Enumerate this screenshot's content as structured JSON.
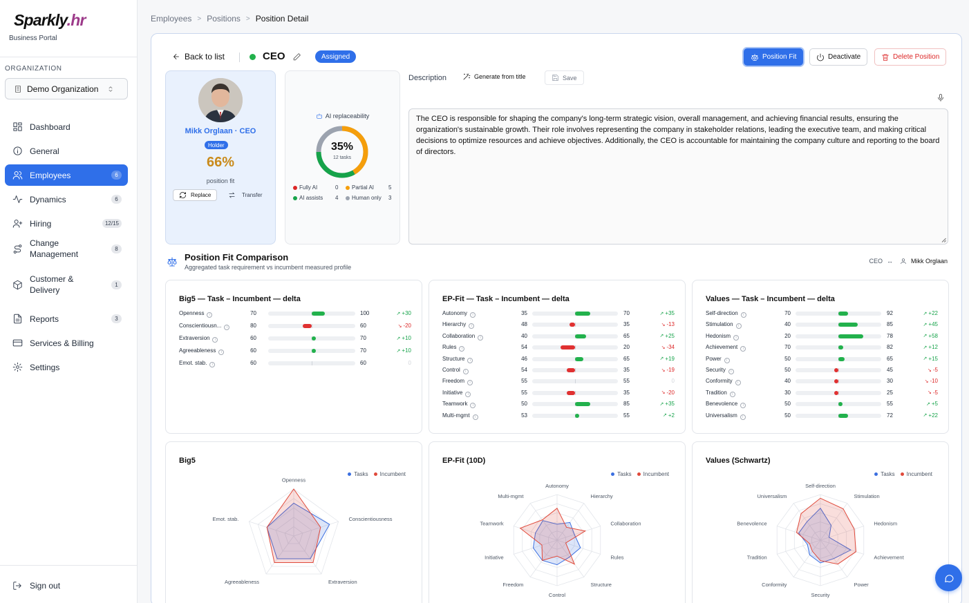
{
  "brand": {
    "name_a": "Sparkly",
    "name_b": ".hr",
    "subtitle": "Business Portal"
  },
  "sidebar": {
    "org_label": "ORGANIZATION",
    "org_value": "Demo Organization",
    "items": [
      {
        "label": "Dashboard",
        "badge": ""
      },
      {
        "label": "General",
        "badge": ""
      },
      {
        "label": "Employees",
        "badge": "6"
      },
      {
        "label": "Dynamics",
        "badge": "6"
      },
      {
        "label": "Hiring",
        "badge": "12/15"
      },
      {
        "label": "Change Management",
        "badge": "8"
      },
      {
        "label": "Customer & Delivery",
        "badge": "1"
      },
      {
        "label": "Reports",
        "badge": "3"
      },
      {
        "label": "Services & Billing",
        "badge": ""
      },
      {
        "label": "Settings",
        "badge": ""
      }
    ],
    "signout": "Sign out"
  },
  "breadcrumb": [
    "Employees",
    "Positions",
    "Position Detail"
  ],
  "header": {
    "back": "Back to list",
    "title": "CEO",
    "status": "Assigned",
    "btn_fit": "Position Fit",
    "btn_deactivate": "Deactivate",
    "btn_delete": "Delete Position"
  },
  "holder": {
    "name": "Mikk Orglaan · CEO",
    "badge": "Holder",
    "fit_pct": "66%",
    "fit_label": "position fit",
    "replace": "Replace",
    "transfer": "Transfer"
  },
  "ai": {
    "label": "AI replaceability",
    "pct": "35%",
    "tasks": "12 tasks",
    "legend": [
      {
        "label": "Fully AI",
        "value": "0",
        "color": "#dc2626"
      },
      {
        "label": "Partial AI",
        "value": "5",
        "color": "#f59e0b"
      },
      {
        "label": "AI assists",
        "value": "4",
        "color": "#16a34a"
      },
      {
        "label": "Human only",
        "value": "3",
        "color": "#9ca3af"
      }
    ]
  },
  "description": {
    "label": "Description",
    "generate": "Generate from title",
    "save": "Save",
    "text": "The CEO is responsible for shaping the company's long-term strategic vision, overall management, and achieving financial results, ensuring the organization's sustainable growth. Their role involves representing the company in stakeholder relations, leading the executive team, and making critical decisions to optimize resources and achieve objectives. Additionally, the CEO is accountable for maintaining the company culture and reporting to the board of directors."
  },
  "comparison": {
    "title": "Position Fit Comparison",
    "subtitle": "Aggregated task requirement vs incumbent measured profile",
    "role": "CEO",
    "arrow": "↔",
    "person": "Mikk Orglaan"
  },
  "delta_cards": [
    {
      "title": "Big5 — Task – Incumbent — delta",
      "rows": [
        {
          "name": "Openness",
          "task": 70,
          "inc": 100,
          "delta": "+30"
        },
        {
          "name": "Conscientiousn...",
          "task": 80,
          "inc": 60,
          "delta": "-20"
        },
        {
          "name": "Extraversion",
          "task": 60,
          "inc": 70,
          "delta": "+10"
        },
        {
          "name": "Agreeableness",
          "task": 60,
          "inc": 70,
          "delta": "+10"
        },
        {
          "name": "Emot. stab.",
          "task": 60,
          "inc": 60,
          "delta": "0"
        }
      ]
    },
    {
      "title": "EP-Fit — Task – Incumbent — delta",
      "rows": [
        {
          "name": "Autonomy",
          "task": 35,
          "inc": 70,
          "delta": "+35"
        },
        {
          "name": "Hierarchy",
          "task": 48,
          "inc": 35,
          "delta": "-13"
        },
        {
          "name": "Collaboration",
          "task": 40,
          "inc": 65,
          "delta": "+25"
        },
        {
          "name": "Rules",
          "task": 54,
          "inc": 20,
          "delta": "-34"
        },
        {
          "name": "Structure",
          "task": 46,
          "inc": 65,
          "delta": "+19"
        },
        {
          "name": "Control",
          "task": 54,
          "inc": 35,
          "delta": "-19"
        },
        {
          "name": "Freedom",
          "task": 55,
          "inc": 55,
          "delta": "0"
        },
        {
          "name": "Initiative",
          "task": 55,
          "inc": 35,
          "delta": "-20"
        },
        {
          "name": "Teamwork",
          "task": 50,
          "inc": 85,
          "delta": "+35"
        },
        {
          "name": "Multi-mgmt",
          "task": 53,
          "inc": 55,
          "delta": "+2"
        }
      ]
    },
    {
      "title": "Values — Task – Incumbent — delta",
      "rows": [
        {
          "name": "Self-direction",
          "task": 70,
          "inc": 92,
          "delta": "+22"
        },
        {
          "name": "Stimulation",
          "task": 40,
          "inc": 85,
          "delta": "+45"
        },
        {
          "name": "Hedonism",
          "task": 20,
          "inc": 78,
          "delta": "+58"
        },
        {
          "name": "Achievement",
          "task": 70,
          "inc": 82,
          "delta": "+12"
        },
        {
          "name": "Power",
          "task": 50,
          "inc": 65,
          "delta": "+15"
        },
        {
          "name": "Security",
          "task": 50,
          "inc": 45,
          "delta": "-5"
        },
        {
          "name": "Conformity",
          "task": 40,
          "inc": 30,
          "delta": "-10"
        },
        {
          "name": "Tradition",
          "task": 30,
          "inc": 25,
          "delta": "-5"
        },
        {
          "name": "Benevolence",
          "task": 50,
          "inc": 55,
          "delta": "+5"
        },
        {
          "name": "Universalism",
          "task": 50,
          "inc": 72,
          "delta": "+22"
        }
      ]
    }
  ],
  "chart_data": [
    {
      "type": "radar",
      "title": "Big5",
      "legend": [
        "Tasks",
        "Incumbent"
      ],
      "axes": [
        "Openness",
        "Conscientiousness",
        "Extraversion",
        "Agreeableness",
        "Emot. stab."
      ],
      "series": [
        {
          "name": "Tasks",
          "color": "#3b6fe0",
          "values": [
            70,
            80,
            60,
            60,
            60
          ]
        },
        {
          "name": "Incumbent",
          "color": "#e04a3b",
          "values": [
            100,
            60,
            70,
            70,
            60
          ]
        }
      ],
      "range": [
        0,
        100
      ]
    },
    {
      "type": "radar",
      "title": "EP-Fit (10D)",
      "legend": [
        "Tasks",
        "Incumbent"
      ],
      "axes": [
        "Autonomy",
        "Hierarchy",
        "Collaboration",
        "Rules",
        "Structure",
        "Control",
        "Freedom",
        "Initiative",
        "Teamwork",
        "Multi-mgmt"
      ],
      "series": [
        {
          "name": "Tasks",
          "color": "#3b6fe0",
          "values": [
            35,
            48,
            40,
            54,
            46,
            54,
            55,
            55,
            50,
            53
          ]
        },
        {
          "name": "Incumbent",
          "color": "#e04a3b",
          "values": [
            70,
            35,
            65,
            20,
            65,
            35,
            55,
            35,
            85,
            55
          ]
        }
      ],
      "range": [
        0,
        100
      ]
    },
    {
      "type": "radar",
      "title": "Values (Schwartz)",
      "legend": [
        "Tasks",
        "Incumbent"
      ],
      "axes": [
        "Self-direction",
        "Stimulation",
        "Hedonism",
        "Achievement",
        "Power",
        "Security",
        "Conformity",
        "Tradition",
        "Benevolence",
        "Universalism"
      ],
      "series": [
        {
          "name": "Tasks",
          "color": "#3b6fe0",
          "values": [
            70,
            40,
            20,
            70,
            50,
            50,
            40,
            30,
            50,
            50
          ]
        },
        {
          "name": "Incumbent",
          "color": "#e04a3b",
          "values": [
            92,
            85,
            78,
            82,
            65,
            45,
            30,
            25,
            55,
            72
          ]
        }
      ],
      "range": [
        0,
        100
      ]
    }
  ],
  "colors": {
    "accent": "#2f6fe9",
    "positive": "#16a34a",
    "negative": "#dc2626",
    "fit": "#c98a1a"
  }
}
